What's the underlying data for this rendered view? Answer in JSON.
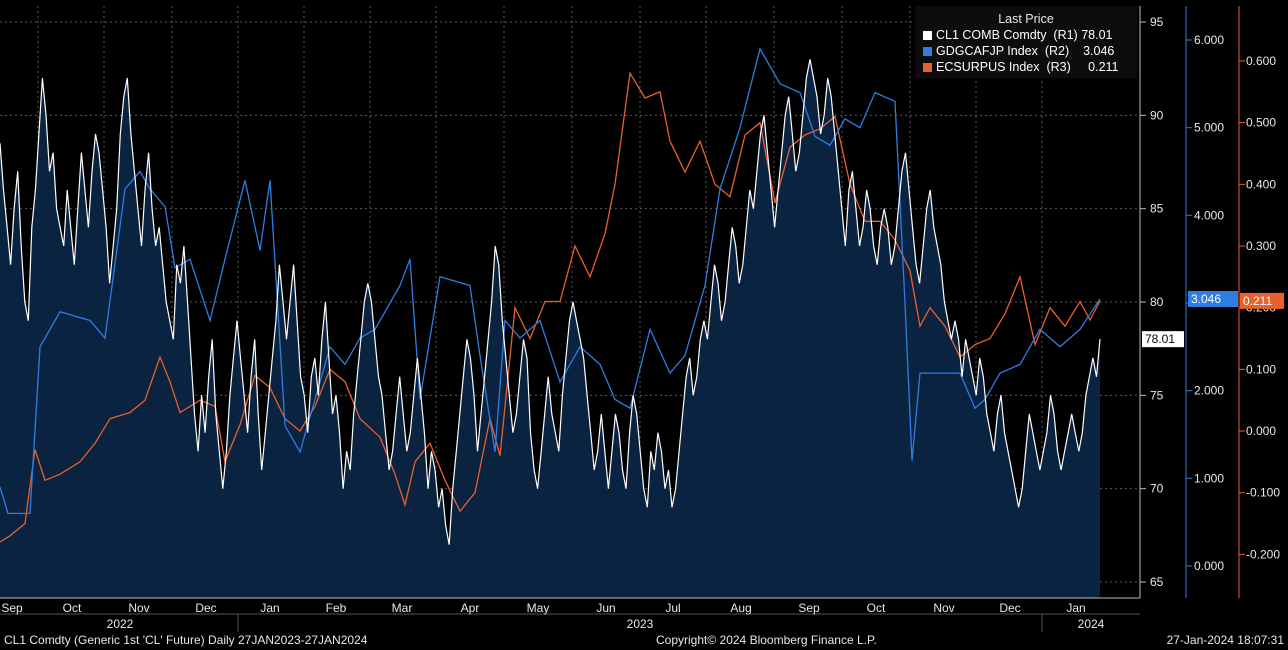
{
  "chart_data": {
    "type": "line",
    "legend": {
      "title": "Last Price",
      "placement": "top-right",
      "entries": [
        {
          "name": "CL1 COMB Comdty",
          "axis": "(R1)",
          "last": "78.01",
          "color": "#ffffff"
        },
        {
          "name": "GDGCAFJP Index",
          "axis": "(R2)",
          "last": "3.046",
          "color": "#2f7de1"
        },
        {
          "name": "ECSURPUS Index",
          "axis": "(R3)",
          "last": "0.211",
          "color": "#e8602c"
        }
      ]
    },
    "x_months": [
      "Sep",
      "Oct",
      "Nov",
      "Dec",
      "Jan",
      "Feb",
      "Mar",
      "Apr",
      "May",
      "Jun",
      "Jul",
      "Aug",
      "Sep",
      "Oct",
      "Nov",
      "Dec",
      "Jan"
    ],
    "x_years": [
      "2022",
      "2023",
      "2024"
    ],
    "axes": {
      "r1": {
        "ylim": [
          64.5,
          95.5
        ],
        "ticks": [
          "65",
          "70",
          "75",
          "80",
          "85",
          "90",
          "95"
        ]
      },
      "r2": {
        "ylim": [
          -0.15,
          6.3
        ],
        "ticks": [
          "0.000",
          "1.000",
          "2.000",
          "3.000",
          "4.000",
          "5.000",
          "6.000"
        ]
      },
      "r3": {
        "ylim": [
          -0.243,
          0.66
        ],
        "ticks": [
          "-0.200",
          "-0.100",
          "0.000",
          "0.100",
          "0.200",
          "0.300",
          "0.400",
          "0.500",
          "0.600"
        ]
      }
    },
    "grid": true,
    "series": [
      {
        "name": "CL1 COMB Comdty",
        "color": "#ffffff",
        "area": true,
        "points": [
          [
            0,
            88.5
          ],
          [
            0.3,
            85
          ],
          [
            0.6,
            82
          ],
          [
            1,
            86
          ],
          [
            1.4,
            83
          ],
          [
            1.8,
            79
          ],
          [
            2.2,
            84
          ],
          [
            2.6,
            88
          ],
          [
            3,
            84
          ],
          [
            3.4,
            81
          ],
          [
            3.7,
            85
          ],
          [
            4.1,
            80
          ],
          [
            4.5,
            86
          ],
          [
            4.9,
            79
          ],
          [
            5.3,
            82
          ],
          [
            5.7,
            76
          ],
          [
            6,
            84
          ],
          [
            6.4,
            82
          ],
          [
            6.8,
            79
          ],
          [
            7.2,
            83
          ],
          [
            7.5,
            90
          ],
          [
            7.8,
            87
          ],
          [
            8.1,
            83
          ],
          [
            8.4,
            85
          ],
          [
            8.7,
            80
          ],
          [
            9,
            82
          ],
          [
            9.3,
            87
          ],
          [
            9.6,
            85
          ],
          [
            9.9,
            83
          ],
          [
            10.2,
            86
          ],
          [
            10.5,
            88
          ],
          [
            10.8,
            84
          ],
          [
            11.1,
            88
          ],
          [
            11.4,
            86
          ],
          [
            11.7,
            82
          ],
          [
            12,
            84
          ],
          [
            12.3,
            90
          ],
          [
            12.6,
            86
          ],
          [
            12.9,
            89
          ],
          [
            13.2,
            84
          ],
          [
            13.5,
            87
          ],
          [
            13.8,
            83
          ],
          [
            14.1,
            85
          ],
          [
            14.4,
            80
          ],
          [
            14.7,
            77
          ],
          [
            15,
            81
          ],
          [
            15.3,
            82
          ],
          [
            15.6,
            80
          ],
          [
            15.9,
            83
          ],
          [
            16.2,
            81
          ],
          [
            16.5,
            79
          ],
          [
            16.8,
            76
          ],
          [
            17.1,
            80
          ],
          [
            17.4,
            82
          ],
          [
            17.7,
            78
          ],
          [
            18,
            74
          ],
          [
            18.3,
            76
          ],
          [
            18.6,
            72
          ],
          [
            18.9,
            75
          ],
          [
            19.2,
            78
          ],
          [
            19.5,
            76
          ],
          [
            19.8,
            74
          ],
          [
            20.1,
            77
          ],
          [
            20.4,
            79
          ],
          [
            20.7,
            75
          ],
          [
            21.0,
            73
          ],
          [
            21.3,
            76
          ],
          [
            21.6,
            74
          ],
          [
            21.9,
            77
          ],
          [
            22.2,
            72
          ],
          [
            22.5,
            75
          ],
          [
            22.8,
            78
          ],
          [
            23.1,
            76
          ],
          [
            23.4,
            73
          ],
          [
            23.7,
            76
          ],
          [
            24.0,
            74
          ],
          [
            24.3,
            77
          ]
        ],
        "values_note": ""
      }
    ]
  },
  "series_paths": {
    "crude": [
      88.5,
      86,
      84,
      82,
      85,
      87,
      83,
      80,
      79,
      84,
      86,
      89,
      92,
      90,
      87,
      88,
      85,
      84,
      83,
      86,
      84,
      82,
      85,
      88,
      86,
      84,
      87,
      89,
      88,
      86,
      84,
      81,
      83,
      85,
      89,
      91,
      92,
      89,
      87,
      85,
      83,
      86,
      88,
      85,
      83,
      84,
      82,
      80,
      79,
      78,
      82,
      81,
      83,
      80,
      77,
      74,
      72,
      75,
      73,
      76,
      78,
      74,
      72,
      70,
      72,
      75,
      77,
      79,
      77,
      75,
      73,
      76,
      78,
      74,
      71,
      73,
      75,
      77,
      79,
      82,
      80,
      78,
      80,
      82,
      79,
      76,
      75,
      73,
      76,
      77,
      75,
      78,
      80,
      77,
      74,
      75,
      73,
      70,
      72,
      71,
      74,
      76,
      78,
      80,
      81,
      80,
      78,
      76,
      75,
      73,
      71,
      72,
      74,
      76,
      74,
      72,
      73,
      75,
      77,
      75,
      73,
      70,
      72,
      71,
      69,
      70,
      68,
      67,
      70,
      72,
      74,
      76,
      78,
      77,
      75,
      72,
      74,
      76,
      78,
      80,
      83,
      82,
      79,
      77,
      75,
      73,
      74,
      76,
      78,
      77,
      73,
      71,
      70,
      72,
      74,
      76,
      74,
      73,
      72,
      75,
      77,
      79,
      80,
      79,
      78,
      77,
      75,
      73,
      71,
      72,
      74,
      72,
      70,
      72,
      74,
      73,
      71,
      70,
      73,
      75,
      74,
      72,
      70,
      69,
      72,
      71,
      73,
      72,
      70,
      71,
      69,
      70,
      72,
      74,
      76,
      77,
      75,
      76,
      78,
      79,
      78,
      80,
      82,
      81,
      79,
      80,
      82,
      84,
      83,
      81,
      82,
      84,
      86,
      85,
      87,
      89,
      90,
      88,
      86,
      84,
      86,
      88,
      90,
      91,
      89,
      87,
      88,
      90,
      92,
      93,
      92,
      91,
      89,
      90,
      92,
      91,
      89,
      87,
      85,
      83,
      86,
      87,
      85,
      83,
      84,
      86,
      85,
      83,
      82,
      84,
      85,
      84,
      82,
      83,
      85,
      87,
      88,
      86,
      84,
      82,
      81,
      83,
      85,
      86,
      84,
      83,
      82,
      80,
      79,
      78,
      79,
      78,
      76,
      78,
      77,
      76,
      75,
      77,
      76,
      74,
      73,
      72,
      74,
      75,
      73,
      72,
      71,
      70,
      69,
      70,
      72,
      74,
      73,
      72,
      71,
      72,
      73,
      75,
      74,
      72,
      71,
      72,
      73,
      74,
      73,
      72,
      73,
      75,
      76,
      77,
      76,
      78.01
    ]
  },
  "footer": {
    "left": "CL1 Comdty (Generic 1st 'CL' Future)  Daily 27JAN2023-27JAN2024",
    "center": "Copyright© 2024 Bloomberg Finance L.P.",
    "right": "27-Jan-2024 18:07:31"
  }
}
